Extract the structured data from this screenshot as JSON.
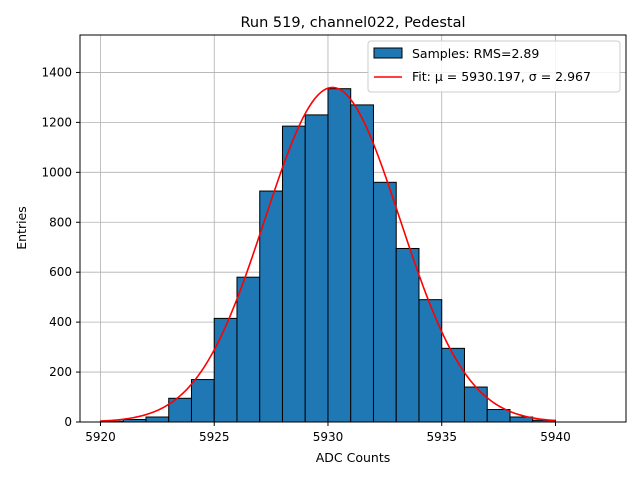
{
  "chart_data": {
    "type": "bar",
    "title": "Run 519, channel022, Pedestal",
    "xlabel": "ADC Counts",
    "ylabel": "Entries",
    "xlim": [
      5919.1,
      5943.1
    ],
    "ylim": [
      0,
      1550
    ],
    "xticks": [
      5920,
      5925,
      5930,
      5935,
      5940
    ],
    "yticks": [
      0,
      200,
      400,
      600,
      800,
      1000,
      1200,
      1400
    ],
    "grid": true,
    "legend_position": "top-right",
    "bin_width": 1,
    "bins": [
      {
        "left": 5920,
        "value": 3
      },
      {
        "left": 5921,
        "value": 10
      },
      {
        "left": 5922,
        "value": 20
      },
      {
        "left": 5923,
        "value": 95
      },
      {
        "left": 5924,
        "value": 170
      },
      {
        "left": 5925,
        "value": 415
      },
      {
        "left": 5926,
        "value": 580
      },
      {
        "left": 5927,
        "value": 925
      },
      {
        "left": 5928,
        "value": 1185
      },
      {
        "left": 5929,
        "value": 1230
      },
      {
        "left": 5930,
        "value": 1335
      },
      {
        "left": 5931,
        "value": 1270
      },
      {
        "left": 5932,
        "value": 960
      },
      {
        "left": 5933,
        "value": 695
      },
      {
        "left": 5934,
        "value": 490
      },
      {
        "left": 5935,
        "value": 295
      },
      {
        "left": 5936,
        "value": 140
      },
      {
        "left": 5937,
        "value": 50
      },
      {
        "left": 5938,
        "value": 20
      },
      {
        "left": 5939,
        "value": 7
      }
    ],
    "fit": {
      "mu": 5930.197,
      "sigma": 2.967,
      "amplitude": 1340,
      "x_range": [
        5920,
        5940
      ]
    },
    "series": [
      {
        "name": "Samples: RMS=2.89",
        "type": "histogram",
        "color": "#1f77b4"
      },
      {
        "name": "Fit: μ = 5930.197, σ = 2.967",
        "type": "line",
        "color": "#ff0000"
      }
    ]
  }
}
